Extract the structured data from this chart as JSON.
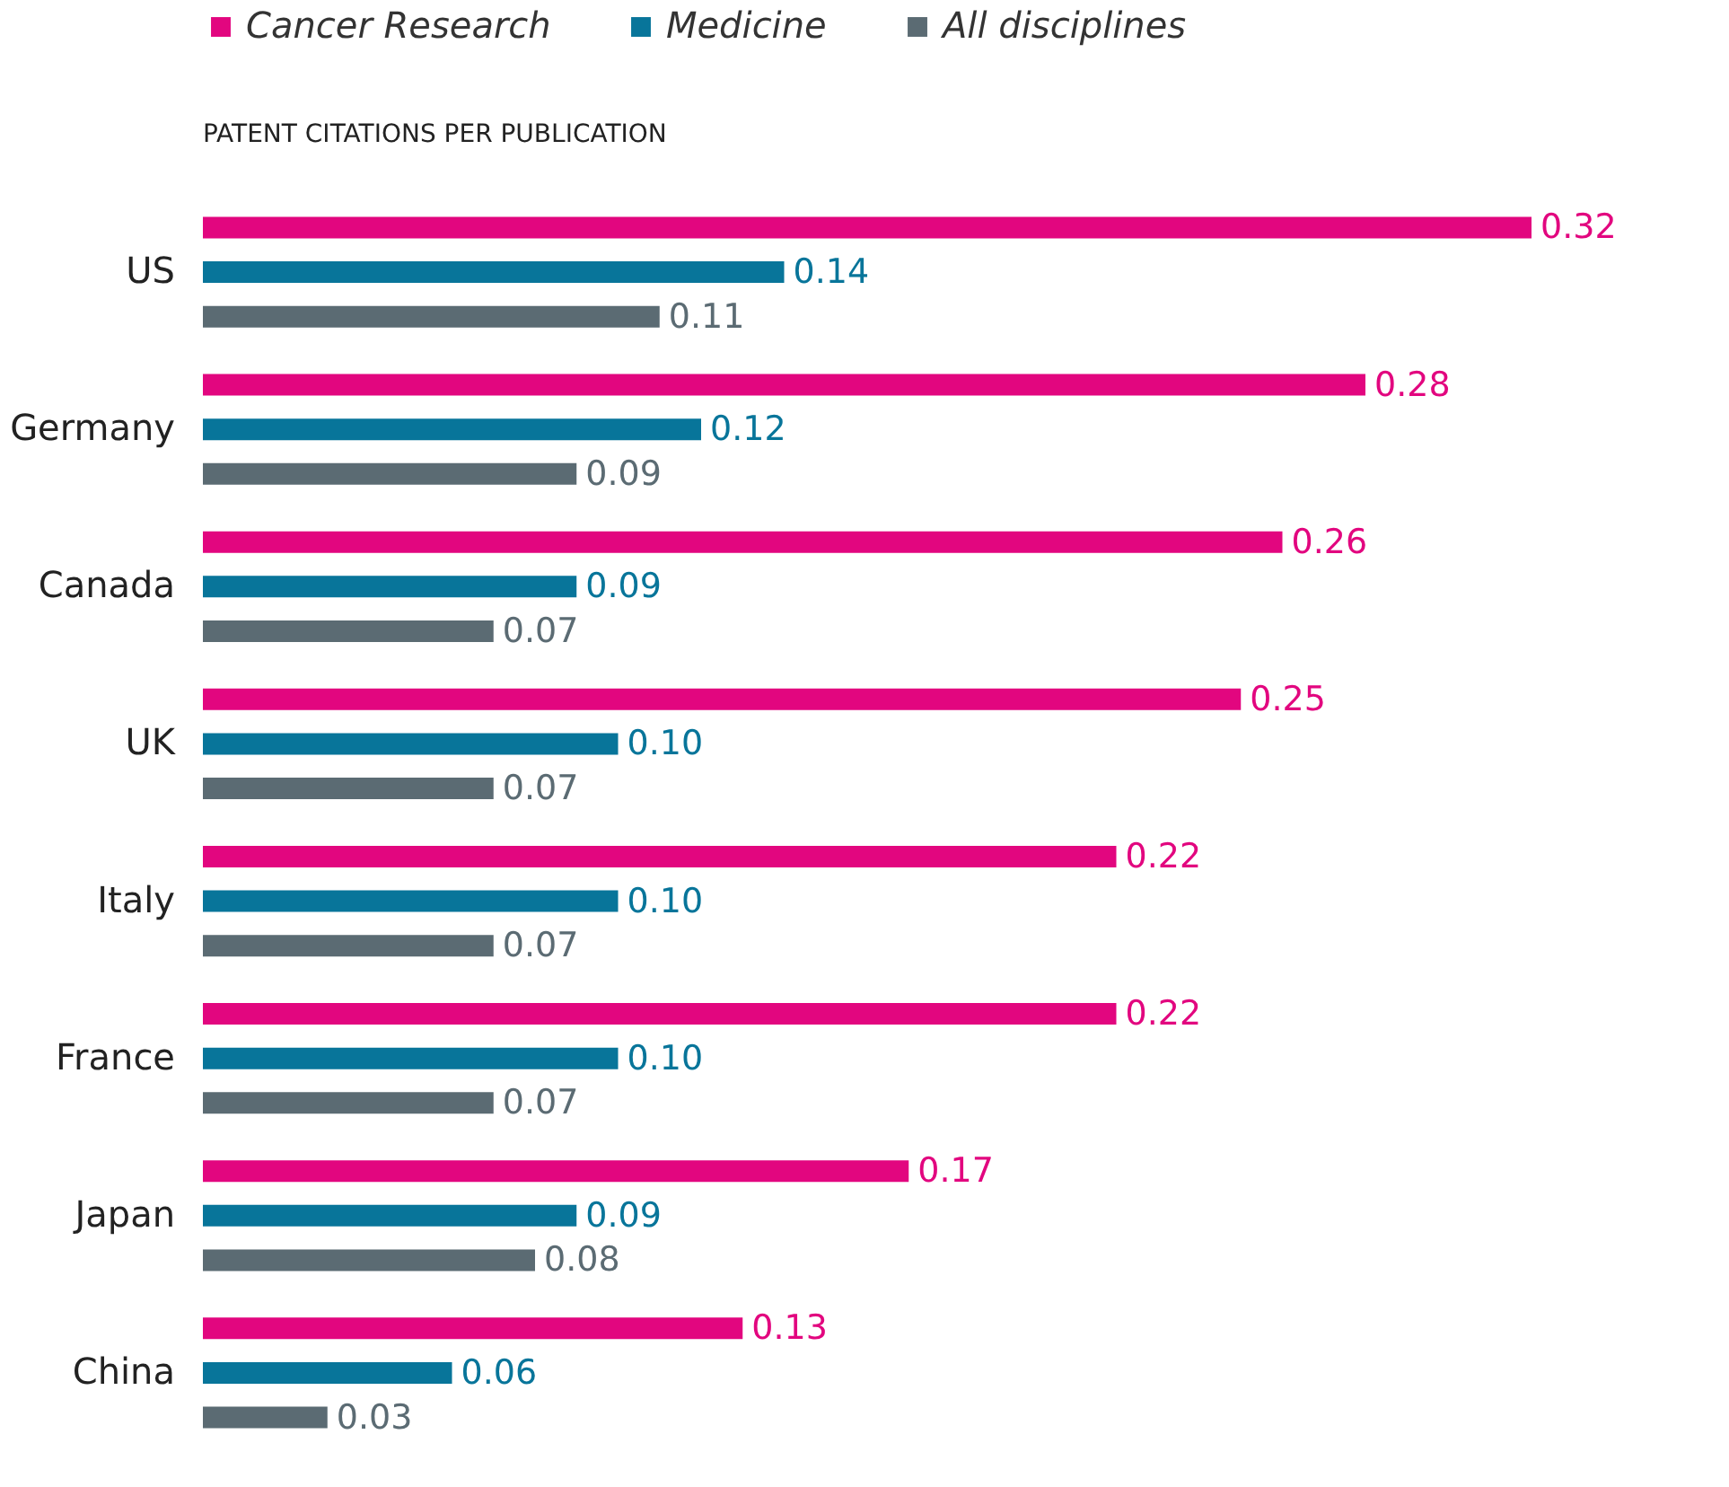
{
  "chart_data": {
    "type": "bar",
    "orientation": "horizontal",
    "title": "PATENT CITATIONS PER PUBLICATION",
    "categories": [
      "US",
      "Germany",
      "Canada",
      "UK",
      "Italy",
      "France",
      "Japan",
      "China"
    ],
    "series": [
      {
        "name": "Cancer Research",
        "color": "#e2067f",
        "values": [
          0.32,
          0.28,
          0.26,
          0.25,
          0.22,
          0.22,
          0.17,
          0.13
        ],
        "value_labels": [
          "0.32",
          "0.28",
          "0.26",
          "0.25",
          "0.22",
          "0.22",
          "0.17",
          "0.13"
        ]
      },
      {
        "name": "Medicine",
        "color": "#08759a",
        "values": [
          0.14,
          0.12,
          0.09,
          0.1,
          0.1,
          0.1,
          0.09,
          0.06
        ],
        "value_labels": [
          "0.14",
          "0.12",
          "0.09",
          "0.10",
          "0.10",
          "0.10",
          "0.09",
          "0.06"
        ]
      },
      {
        "name": "All disciplines",
        "color": "#5b6b73",
        "values": [
          0.11,
          0.09,
          0.07,
          0.07,
          0.07,
          0.07,
          0.08,
          0.03
        ],
        "value_labels": [
          "0.11",
          "0.09",
          "0.07",
          "0.07",
          "0.07",
          "0.07",
          "0.08",
          "0.03"
        ]
      }
    ],
    "legend": "top left",
    "grid": false
  }
}
